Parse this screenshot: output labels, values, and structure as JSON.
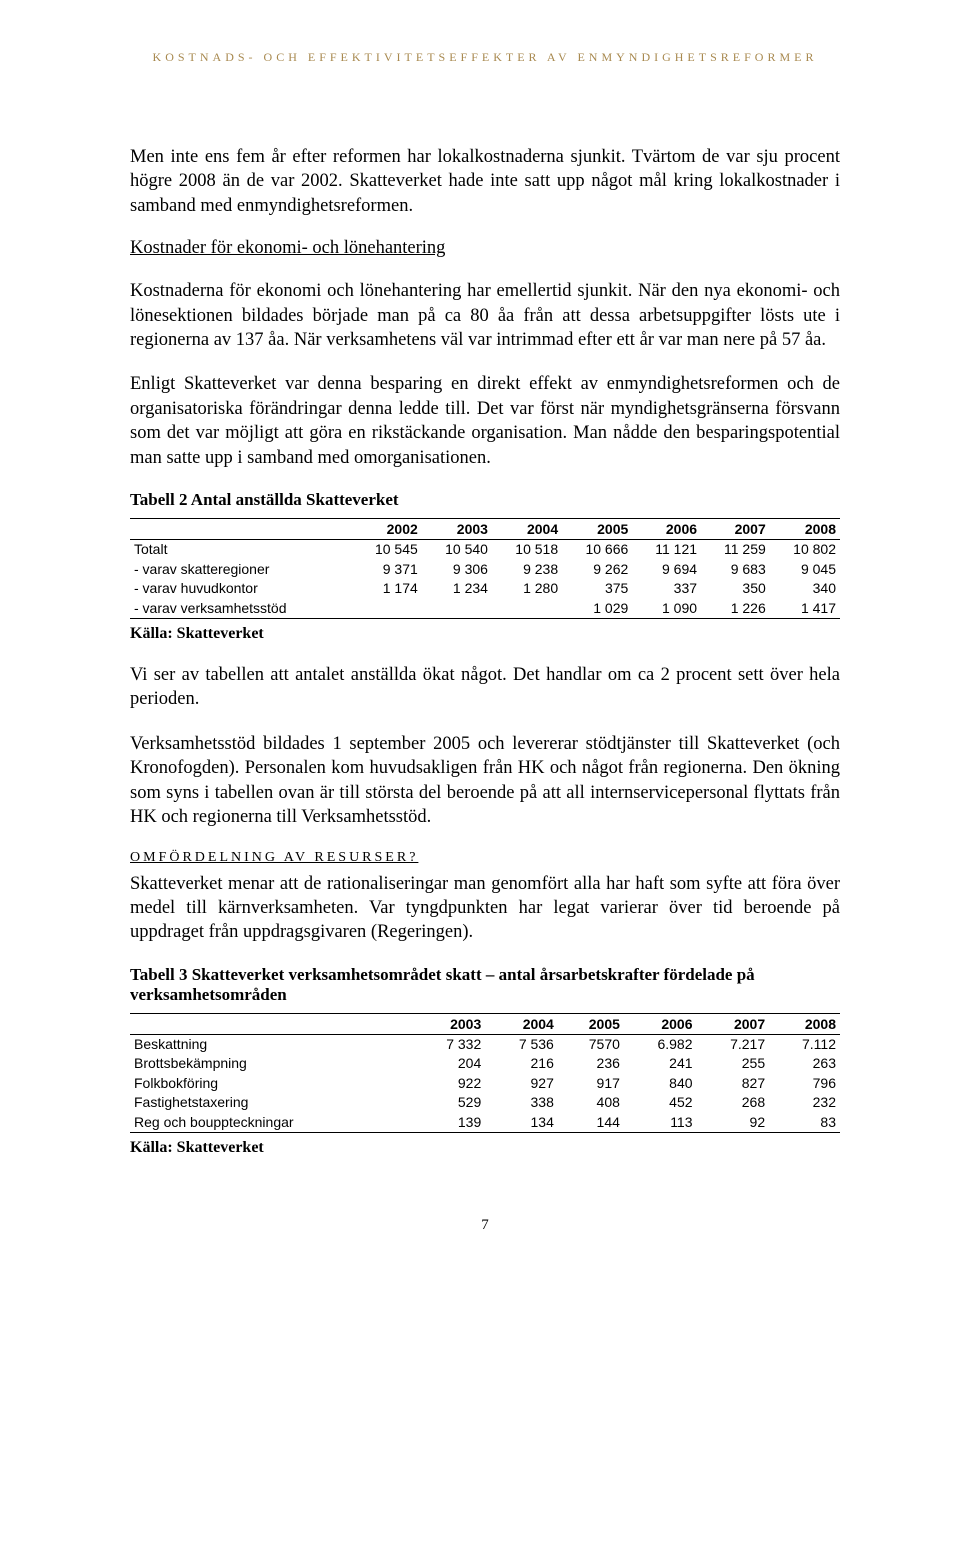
{
  "header": "KOSTNADS- OCH EFFEKTIVITETSEFFEKTER AV ENMYNDIGHETSREFORMER",
  "p1": "Men inte ens fem år efter reformen har lokalkostnaderna sjunkit. Tvärtom de var sju procent högre 2008 än de var 2002. Skatteverket hade inte satt upp något mål kring lokalkostnader i samband med enmyndighetsreformen.",
  "h1": "Kostnader för ekonomi- och lönehantering",
  "p2": "Kostnaderna för ekonomi och lönehantering har emellertid sjunkit. När den nya ekonomi- och lönesektionen bildades började man på ca 80 åa från att dessa arbetsuppgifter lösts ute i regionerna av 137 åa. När verksamhetens väl var intrimmad efter ett år var man nere på 57 åa.",
  "p3": "Enligt Skatteverket var denna besparing en direkt effekt av enmyndighetsreformen och de organisatoriska förändringar denna ledde till. Det var först när myndighetsgränserna försvann som det var möjligt att göra en rikstäckande organisation. Man nådde den besparingspotential man satte upp i samband med omorganisationen.",
  "table2": {
    "title": "Tabell 2  Antal anställda Skatteverket",
    "years": [
      "2002",
      "2003",
      "2004",
      "2005",
      "2006",
      "2007",
      "2008"
    ],
    "rows": [
      {
        "label": "Totalt",
        "v": [
          "10 545",
          "10 540",
          "10 518",
          "10 666",
          "11 121",
          "11 259",
          "10 802"
        ]
      },
      {
        "label": "- varav skatteregioner",
        "v": [
          "9 371",
          "9 306",
          "9 238",
          "9 262",
          "9 694",
          "9 683",
          "9 045"
        ]
      },
      {
        "label": "- varav huvudkontor",
        "v": [
          "1 174",
          "1 234",
          "1 280",
          "375",
          "337",
          "350",
          "340"
        ]
      },
      {
        "label": "- varav verksamhetsstöd",
        "v": [
          "",
          "",
          "",
          "1 029",
          "1 090",
          "1 226",
          "1 417"
        ]
      }
    ],
    "source": "Källa: Skatteverket"
  },
  "p4": "Vi ser av tabellen att antalet anställda ökat något. Det handlar om ca 2 procent sett över hela perioden.",
  "p5": "Verksamhetsstöd bildades 1 september 2005 och levererar stödtjänster till Skatteverket (och Kronofogden). Personalen kom huvudsakligen från HK och något från regionerna. Den ökning som syns i tabellen ovan är till största del beroende på att all internservicepersonal flyttats från HK och regionerna till Verksamhetsstöd.",
  "h2": "OMFÖRDELNING AV RESURSER?",
  "p6": "Skatteverket menar att de rationaliseringar man genomfört alla har haft som syfte att föra över medel till kärnverksamheten. Var tyngdpunkten har legat varierar över tid beroende på uppdraget från uppdragsgivaren (Regeringen).",
  "table3": {
    "title": "Tabell 3  Skatteverket  verksamhetsområdet skatt – antal årsarbetskrafter fördelade på verksamhetsområden",
    "years": [
      "2003",
      "2004",
      "2005",
      "2006",
      "2007",
      "2008"
    ],
    "rows": [
      {
        "label": "Beskattning",
        "v": [
          "7 332",
          "7 536",
          "7570",
          "6.982",
          "7.217",
          "7.112"
        ]
      },
      {
        "label": "Brottsbekämpning",
        "v": [
          "204",
          "216",
          "236",
          "241",
          "255",
          "263"
        ]
      },
      {
        "label": "Folkbokföring",
        "v": [
          "922",
          "927",
          "917",
          "840",
          "827",
          "796"
        ]
      },
      {
        "label": "Fastighetstaxering",
        "v": [
          "529",
          "338",
          "408",
          "452",
          "268",
          "232"
        ]
      },
      {
        "label": "Reg och bouppteckningar",
        "v": [
          "139",
          "134",
          "144",
          "113",
          "92",
          "83"
        ]
      }
    ],
    "source": "Källa: Skatteverket"
  },
  "pagenum": "7"
}
